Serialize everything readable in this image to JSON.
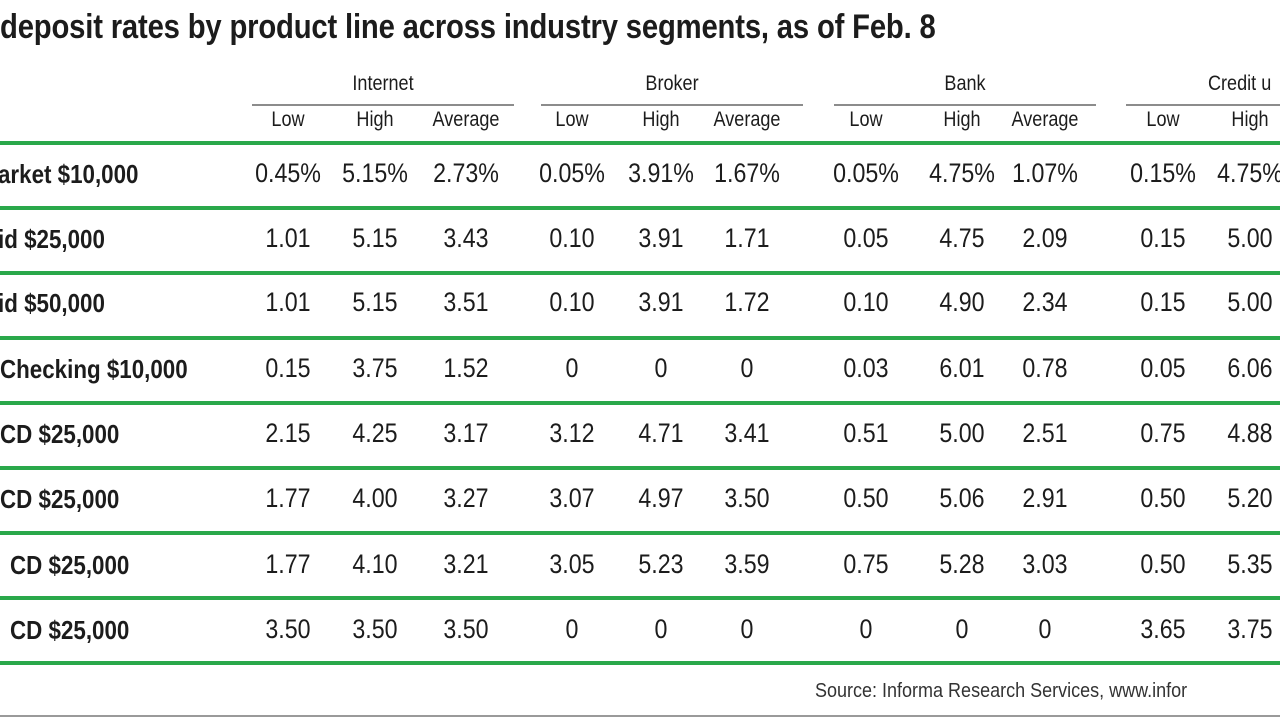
{
  "title": "deposit rates by product line across industry segments, as of Feb. 8",
  "source": "Source: Informa Research Services, www.infor",
  "chart_data": {
    "type": "table",
    "groups": [
      "Internet",
      "Broker",
      "Bank",
      "Credit u"
    ],
    "subheaders": [
      "Low",
      "High",
      "Average"
    ],
    "rows": [
      {
        "label": "arket $10,000",
        "values": [
          [
            "0.45%",
            "5.15%",
            "2.73%"
          ],
          [
            "0.05%",
            "3.91%",
            "1.67%"
          ],
          [
            "0.05%",
            "4.75%",
            "1.07%"
          ],
          [
            "0.15%",
            "4.75%"
          ]
        ]
      },
      {
        "label": "id $25,000",
        "values": [
          [
            "1.01",
            "5.15",
            "3.43"
          ],
          [
            "0.10",
            "3.91",
            "1.71"
          ],
          [
            "0.05",
            "4.75",
            "2.09"
          ],
          [
            "0.15",
            "5.00"
          ]
        ]
      },
      {
        "label": "id $50,000",
        "values": [
          [
            "1.01",
            "5.15",
            "3.51"
          ],
          [
            "0.10",
            "3.91",
            "1.72"
          ],
          [
            "0.10",
            "4.90",
            "2.34"
          ],
          [
            "0.15",
            "5.00"
          ]
        ]
      },
      {
        "label": "Checking $10,000",
        "values": [
          [
            "0.15",
            "3.75",
            "1.52"
          ],
          [
            "0",
            "0",
            "0"
          ],
          [
            "0.03",
            "6.01",
            "0.78"
          ],
          [
            "0.05",
            "6.06"
          ]
        ]
      },
      {
        "label": "CD $25,000",
        "values": [
          [
            "2.15",
            "4.25",
            "3.17"
          ],
          [
            "3.12",
            "4.71",
            "3.41"
          ],
          [
            "0.51",
            "5.00",
            "2.51"
          ],
          [
            "0.75",
            "4.88"
          ]
        ]
      },
      {
        "label": "CD $25,000",
        "values": [
          [
            "1.77",
            "4.00",
            "3.27"
          ],
          [
            "3.07",
            "4.97",
            "3.50"
          ],
          [
            "0.50",
            "5.06",
            "2.91"
          ],
          [
            "0.50",
            "5.20"
          ]
        ]
      },
      {
        "label": "CD $25,000",
        "values": [
          [
            "1.77",
            "4.10",
            "3.21"
          ],
          [
            "3.05",
            "5.23",
            "3.59"
          ],
          [
            "0.75",
            "5.28",
            "3.03"
          ],
          [
            "0.50",
            "5.35"
          ]
        ]
      },
      {
        "label": "CD $25,000",
        "values": [
          [
            "3.50",
            "3.50",
            "3.50"
          ],
          [
            "0",
            "0",
            "0"
          ],
          [
            "0",
            "0",
            "0"
          ],
          [
            "3.65",
            "3.75"
          ]
        ]
      }
    ],
    "rule_color": "#2aa84a"
  }
}
